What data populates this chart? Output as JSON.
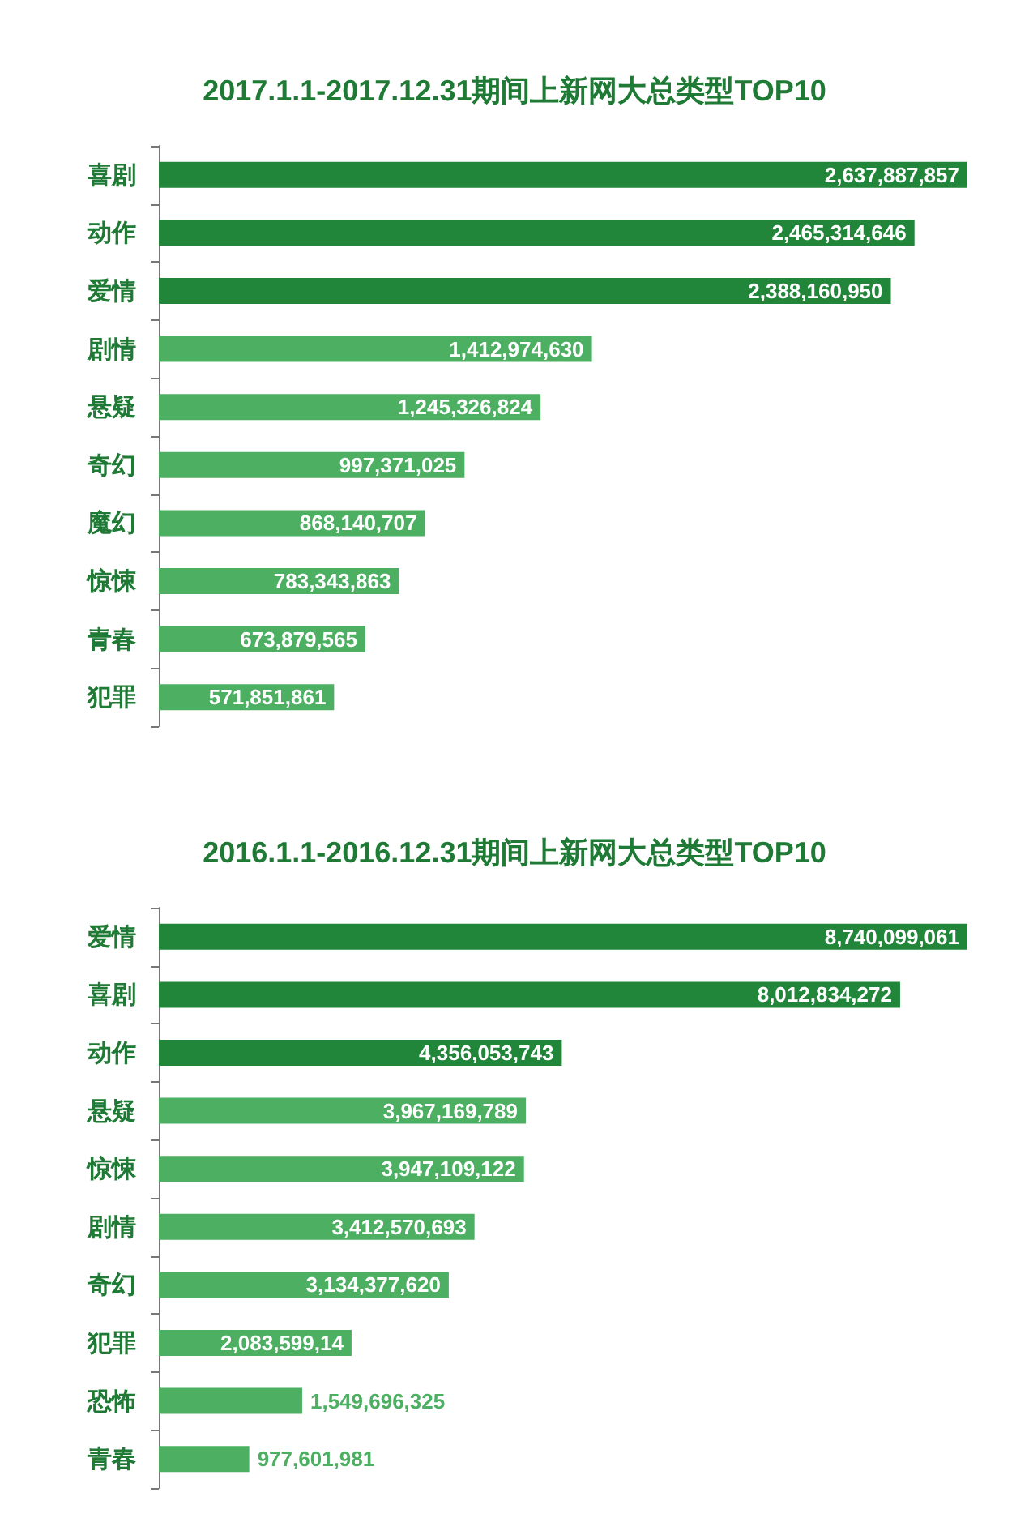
{
  "chart_data": [
    {
      "type": "bar",
      "orientation": "horizontal",
      "title": "2017.1.1-2017.12.31期间上新网大总类型TOP10",
      "categories": [
        "喜剧",
        "动作",
        "爱情",
        "剧情",
        "悬疑",
        "奇幻",
        "魔幻",
        "惊悚",
        "青春",
        "犯罪"
      ],
      "values": [
        2637887857,
        2465314646,
        2388160950,
        1412974630,
        1245326824,
        997371025,
        868140707,
        783343863,
        673879565,
        571851861
      ],
      "value_labels": [
        "2,637,887,857",
        "2,465,314,646",
        "2,388,160,950",
        "1,412,974,630",
        "1,245,326,824",
        "997,371,025",
        "868,140,707",
        "783,343,863",
        "673,879,565",
        "571,851,861"
      ],
      "colors": [
        "#22863a",
        "#22863a",
        "#22863a",
        "#4caf62",
        "#4caf62",
        "#4caf62",
        "#4caf62",
        "#4caf62",
        "#4caf62",
        "#4caf62"
      ]
    },
    {
      "type": "bar",
      "orientation": "horizontal",
      "title": "2016.1.1-2016.12.31期间上新网大总类型TOP10",
      "categories": [
        "爱情",
        "喜剧",
        "动作",
        "悬疑",
        "惊悚",
        "剧情",
        "奇幻",
        "犯罪",
        "恐怖",
        "青春"
      ],
      "values": [
        8740099061,
        8012834272,
        4356053743,
        3967169789,
        3947109122,
        3412570693,
        3134377620,
        2083599140,
        1549696325,
        977601981
      ],
      "value_labels": [
        "8,740,099,061",
        "8,012,834,272",
        "4,356,053,743",
        "3,967,169,789",
        "3,947,109,122",
        "3,412,570,693",
        "3,134,377,620",
        "2,083,599,14",
        "1,549,696,325",
        "977,601,981"
      ],
      "colors": [
        "#22863a",
        "#22863a",
        "#22863a",
        "#4caf62",
        "#4caf62",
        "#4caf62",
        "#4caf62",
        "#4caf62",
        "#4caf62",
        "#4caf62"
      ]
    }
  ]
}
